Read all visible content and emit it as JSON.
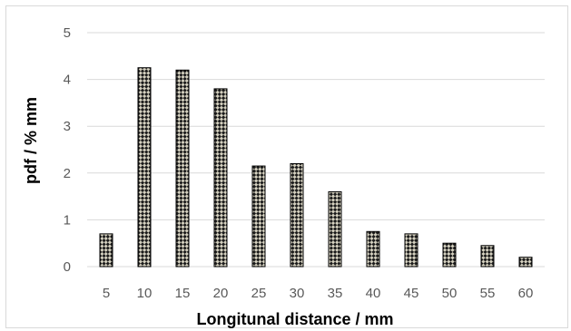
{
  "chart_data": {
    "type": "bar",
    "title": "",
    "xlabel": "Longitunal distance / mm",
    "ylabel": "pdf / % mm",
    "categories": [
      "5",
      "10",
      "15",
      "20",
      "25",
      "30",
      "35",
      "40",
      "45",
      "50",
      "55",
      "60"
    ],
    "values": [
      0.7,
      4.25,
      4.2,
      3.8,
      2.15,
      2.2,
      1.6,
      0.75,
      0.7,
      0.5,
      0.45,
      0.2
    ],
    "ylim": [
      0,
      5
    ],
    "yticks": [
      "0",
      "1",
      "2",
      "3",
      "4",
      "5"
    ],
    "grid": true,
    "legend": "none",
    "bar_fill_pattern": "checkered",
    "bar_colors": {
      "dark": "#1a1a1a",
      "light": "#d4d0bf"
    },
    "grid_color": "#d9d9d9"
  }
}
